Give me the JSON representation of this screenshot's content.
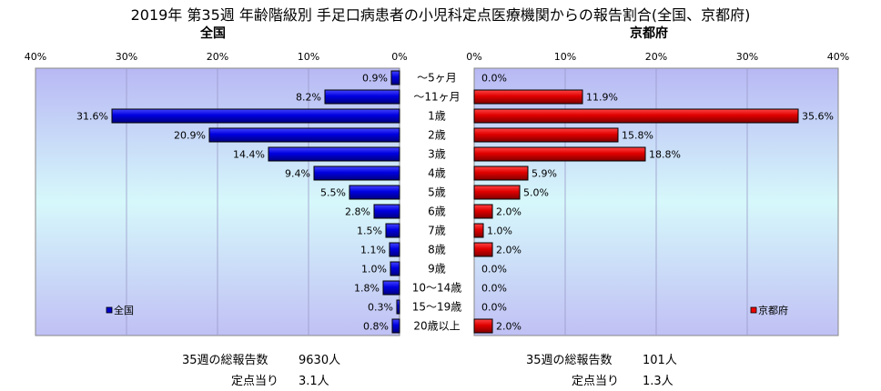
{
  "title": "2019年 第35週 年齢階級別 手足口病患者の小児科定点医療機関からの報告割合(全国、京都府)",
  "chart_data": {
    "type": "bar",
    "categories": [
      "〜5ヶ月",
      "〜11ヶ月",
      "1歳",
      "2歳",
      "3歳",
      "4歳",
      "5歳",
      "6歳",
      "7歳",
      "8歳",
      "9歳",
      "10〜14歳",
      "15〜19歳",
      "20歳以上"
    ],
    "xlim": [
      0,
      40
    ],
    "ticks": [
      "0%",
      "10%",
      "20%",
      "30%",
      "40%"
    ],
    "series": [
      {
        "name": "全国",
        "panel_title": "全国",
        "color": "#0000cc",
        "values": [
          0.9,
          8.2,
          31.6,
          20.9,
          14.4,
          9.4,
          5.5,
          2.8,
          1.5,
          1.1,
          1.0,
          1.8,
          0.3,
          0.8
        ],
        "labels": [
          "0.9%",
          "8.2%",
          "31.6%",
          "20.9%",
          "14.4%",
          "9.4%",
          "5.5%",
          "2.8%",
          "1.5%",
          "1.1%",
          "1.0%",
          "1.8%",
          "0.3%",
          "0.8%"
        ]
      },
      {
        "name": "京都府",
        "panel_title": "京都府",
        "color": "#ee0000",
        "values": [
          0.0,
          11.9,
          35.6,
          15.8,
          18.8,
          5.9,
          5.0,
          2.0,
          1.0,
          2.0,
          0.0,
          0.0,
          0.0,
          2.0
        ],
        "labels": [
          "0.0%",
          "11.9%",
          "35.6%",
          "15.8%",
          "18.8%",
          "5.9%",
          "5.0%",
          "2.0%",
          "1.0%",
          "2.0%",
          "0.0%",
          "0.0%",
          "0.0%",
          "2.0%"
        ]
      }
    ],
    "legend": "bottom-left / bottom-right"
  },
  "footer": {
    "national_total_label": "35週の総報告数",
    "national_total_value": "9630人",
    "national_per_label": "定点当り",
    "national_per_value": "3.1人",
    "kyoto_total_label": "35週の総報告数",
    "kyoto_total_value": "101人",
    "kyoto_per_label": "定点当り",
    "kyoto_per_value": "1.3人"
  }
}
